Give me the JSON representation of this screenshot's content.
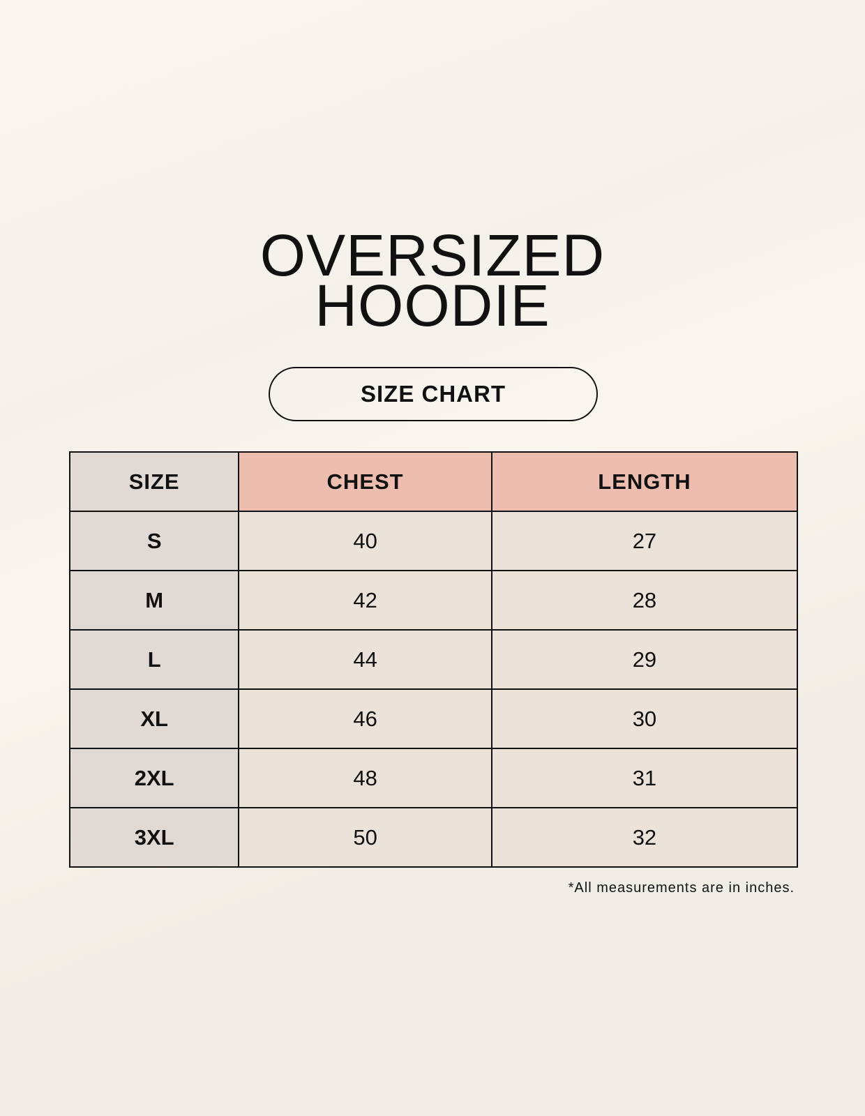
{
  "title": {
    "line1": "OVERSIZED",
    "line2": "HOODIE"
  },
  "subtitle": "SIZE CHART",
  "table": {
    "headers": [
      "SIZE",
      "CHEST",
      "LENGTH"
    ],
    "rows": [
      [
        "S",
        "40",
        "27"
      ],
      [
        "M",
        "42",
        "28"
      ],
      [
        "L",
        "44",
        "29"
      ],
      [
        "XL",
        "46",
        "30"
      ],
      [
        "2XL",
        "48",
        "31"
      ],
      [
        "3XL",
        "50",
        "32"
      ]
    ]
  },
  "footnote": "*All measurements are in inches.",
  "colors": {
    "header_size": "#e1d9d3",
    "header_pink": "#edbdb0",
    "cell": "#ebe3d9"
  }
}
